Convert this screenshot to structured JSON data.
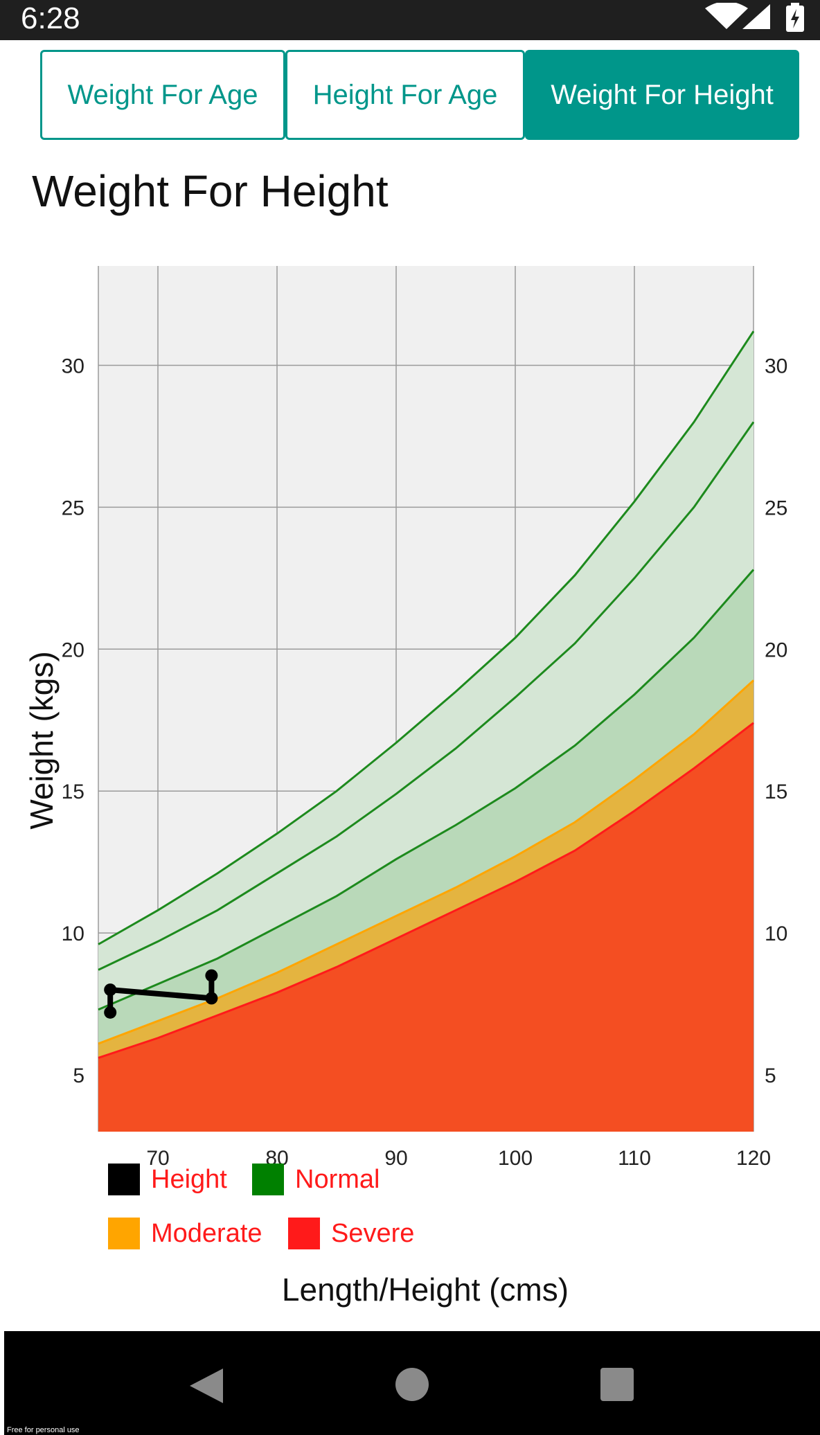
{
  "status": {
    "time": "6:28"
  },
  "tabs": [
    {
      "label": "Weight For Age",
      "active": false
    },
    {
      "label": "Height For Age",
      "active": false
    },
    {
      "label": "Weight For Height",
      "active": true
    }
  ],
  "title": "Weight For Height",
  "chart_data": {
    "type": "area",
    "xlabel": "Length/Height (cms)",
    "ylabel": "Weight (kgs)",
    "xlim": [
      65,
      120
    ],
    "ylim": [
      3,
      33.5
    ],
    "xticks": [
      70,
      80,
      90,
      100,
      110,
      120
    ],
    "yticks": [
      5,
      10,
      15,
      20,
      25,
      30
    ],
    "grid": true,
    "colors": {
      "severe": "#f44e22",
      "moderate": "#e4b440",
      "normal_band": "#b9d9b9",
      "normal_light": "#d5e6d5",
      "green_line": "#1d8a1d",
      "orange_line": "#ffa500",
      "red_line": "#ff1a1a",
      "background": "#f0f0f0"
    },
    "x": [
      65,
      70,
      75,
      80,
      85,
      90,
      95,
      100,
      105,
      110,
      115,
      120
    ],
    "series": [
      {
        "values": [
          5.6,
          6.3,
          7.1,
          7.9,
          8.8,
          9.8,
          10.8,
          11.8,
          12.9,
          14.3,
          15.8,
          17.4
        ]
      },
      {
        "values": [
          6.1,
          6.9,
          7.7,
          8.6,
          9.6,
          10.6,
          11.6,
          12.7,
          13.9,
          15.4,
          17.0,
          18.9
        ]
      },
      {
        "values": [
          7.3,
          8.2,
          9.1,
          10.2,
          11.3,
          12.6,
          13.8,
          15.1,
          16.6,
          18.4,
          20.4,
          22.8
        ]
      },
      {
        "values": [
          8.7,
          9.7,
          10.8,
          12.1,
          13.4,
          14.9,
          16.5,
          18.3,
          20.2,
          22.5,
          25.0,
          28.0
        ]
      },
      {
        "values": [
          9.6,
          10.8,
          12.1,
          13.5,
          15.0,
          16.7,
          18.5,
          20.4,
          22.6,
          25.2,
          28.0,
          31.2
        ]
      }
    ],
    "measurements": [
      {
        "x": 66.0,
        "y": 7.2
      },
      {
        "x": 66.0,
        "y": 8.0
      },
      {
        "x": 74.5,
        "y": 7.7
      },
      {
        "x": 74.5,
        "y": 8.5
      }
    ],
    "legend": [
      {
        "label": "Height",
        "color": "#000000"
      },
      {
        "label": "Normal",
        "color": "#008000"
      },
      {
        "label": "Moderate",
        "color": "#ffa500"
      },
      {
        "label": "Severe",
        "color": "#ff1a1a"
      }
    ]
  },
  "footer": {
    "watermark": "Free for personal use"
  }
}
